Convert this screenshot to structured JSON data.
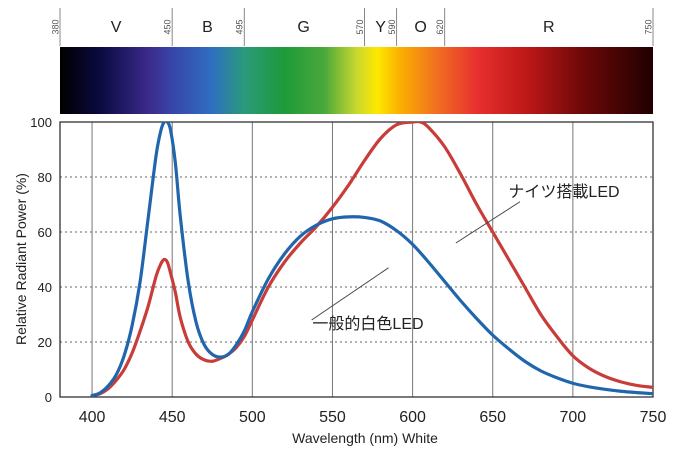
{
  "chart_data": [
    {
      "type": "spectrum-band",
      "range": [
        380,
        750
      ],
      "markers": [
        {
          "id": "m380",
          "label": "380",
          "wl": 380
        },
        {
          "id": "m450",
          "label": "450",
          "wl": 450
        },
        {
          "id": "m495",
          "label": "495",
          "wl": 495
        },
        {
          "id": "m570",
          "label": "570",
          "wl": 570
        },
        {
          "id": "m590",
          "label": "590",
          "wl": 590
        },
        {
          "id": "m620",
          "label": "620",
          "wl": 620
        },
        {
          "id": "m750",
          "label": "750",
          "wl": 750
        }
      ],
      "bands": [
        {
          "id": "v",
          "label": "V",
          "wl": 415
        },
        {
          "id": "b",
          "label": "B",
          "wl": 472
        },
        {
          "id": "g",
          "label": "G",
          "wl": 532
        },
        {
          "id": "y",
          "label": "Y",
          "wl": 580
        },
        {
          "id": "o",
          "label": "O",
          "wl": 605
        },
        {
          "id": "r",
          "label": "R",
          "wl": 685
        }
      ],
      "gradient_stops": [
        {
          "wl": 380,
          "color": "#000000"
        },
        {
          "wl": 405,
          "color": "#0a0a40"
        },
        {
          "wl": 435,
          "color": "#3a2a8a"
        },
        {
          "wl": 450,
          "color": "#3845a8"
        },
        {
          "wl": 475,
          "color": "#2e6fc0"
        },
        {
          "wl": 495,
          "color": "#2a9a7a"
        },
        {
          "wl": 520,
          "color": "#1e9a3a"
        },
        {
          "wl": 545,
          "color": "#4aa83a"
        },
        {
          "wl": 565,
          "color": "#c8d830"
        },
        {
          "wl": 578,
          "color": "#ffe800"
        },
        {
          "wl": 592,
          "color": "#fbb000"
        },
        {
          "wl": 615,
          "color": "#f07020"
        },
        {
          "wl": 640,
          "color": "#e83030"
        },
        {
          "wl": 670,
          "color": "#c01818"
        },
        {
          "wl": 705,
          "color": "#700808"
        },
        {
          "wl": 750,
          "color": "#200000"
        }
      ]
    },
    {
      "type": "line",
      "xlabel": "Wavelength (nm) White",
      "ylabel": "Relative Radiant Power (%)",
      "xlim": [
        380,
        750
      ],
      "ylim": [
        0,
        100
      ],
      "x_ticks": [
        400,
        450,
        500,
        550,
        600,
        650,
        700,
        750
      ],
      "y_ticks": [
        0,
        20,
        40,
        60,
        80,
        100
      ],
      "vertical_grid": [
        400,
        450,
        500,
        550,
        600,
        650,
        700
      ],
      "dotted_grid": [
        20,
        40,
        60,
        80
      ],
      "series": [
        {
          "id": "general",
          "name": "一般的白色LED",
          "color": "#2166ac",
          "x": [
            400,
            405,
            410,
            415,
            420,
            425,
            430,
            435,
            440,
            443,
            445,
            447,
            449,
            452,
            455,
            460,
            465,
            470,
            475,
            480,
            485,
            490,
            495,
            500,
            510,
            520,
            530,
            540,
            550,
            560,
            570,
            580,
            590,
            600,
            610,
            620,
            630,
            640,
            650,
            660,
            670,
            680,
            690,
            700,
            710,
            720,
            730,
            740,
            750
          ],
          "y": [
            0.5,
            1.5,
            4,
            8,
            15,
            26,
            42,
            65,
            88,
            97,
            100,
            100,
            97,
            85,
            66,
            42,
            27,
            19,
            15.5,
            14.5,
            15.5,
            19,
            24,
            31,
            43,
            52,
            58.5,
            62.5,
            64.8,
            65.5,
            65.3,
            64,
            60.5,
            55.5,
            49,
            42,
            35,
            28.5,
            22.5,
            17.5,
            13,
            9.5,
            7,
            5,
            3.7,
            2.8,
            2.1,
            1.6,
            1.2
          ]
        },
        {
          "id": "knights",
          "name": "ナイツ搭載LED",
          "color": "#c83c3a",
          "x": [
            400,
            405,
            410,
            415,
            420,
            425,
            430,
            435,
            440,
            443,
            445,
            447,
            449,
            452,
            455,
            460,
            465,
            470,
            475,
            480,
            485,
            490,
            495,
            500,
            510,
            520,
            530,
            540,
            550,
            560,
            570,
            580,
            590,
            600,
            605,
            610,
            620,
            630,
            640,
            650,
            660,
            670,
            680,
            690,
            700,
            710,
            720,
            730,
            740,
            750
          ],
          "y": [
            0.5,
            1.2,
            3,
            6,
            10,
            16,
            24,
            33,
            44,
            48.5,
            50,
            49,
            45,
            38,
            29,
            20,
            15.5,
            13.5,
            13,
            14,
            15.5,
            18,
            22,
            28,
            40,
            49,
            56,
            62,
            69,
            77,
            86,
            94,
            99,
            100,
            100,
            98,
            91,
            81,
            70,
            60,
            50,
            40,
            30,
            22,
            15,
            10.5,
            7.5,
            5.5,
            4.2,
            3.5
          ]
        }
      ],
      "annotations": [
        {
          "id": "general",
          "text": "一般的白色LED",
          "target_x": 585,
          "target_y": 47,
          "text_x": 645,
          "text_y": 27
        },
        {
          "id": "knights",
          "text": "ナイツ搭載LED",
          "target_x": 627,
          "target_y": 56,
          "text_x": 685,
          "text_y": 75
        }
      ]
    }
  ]
}
